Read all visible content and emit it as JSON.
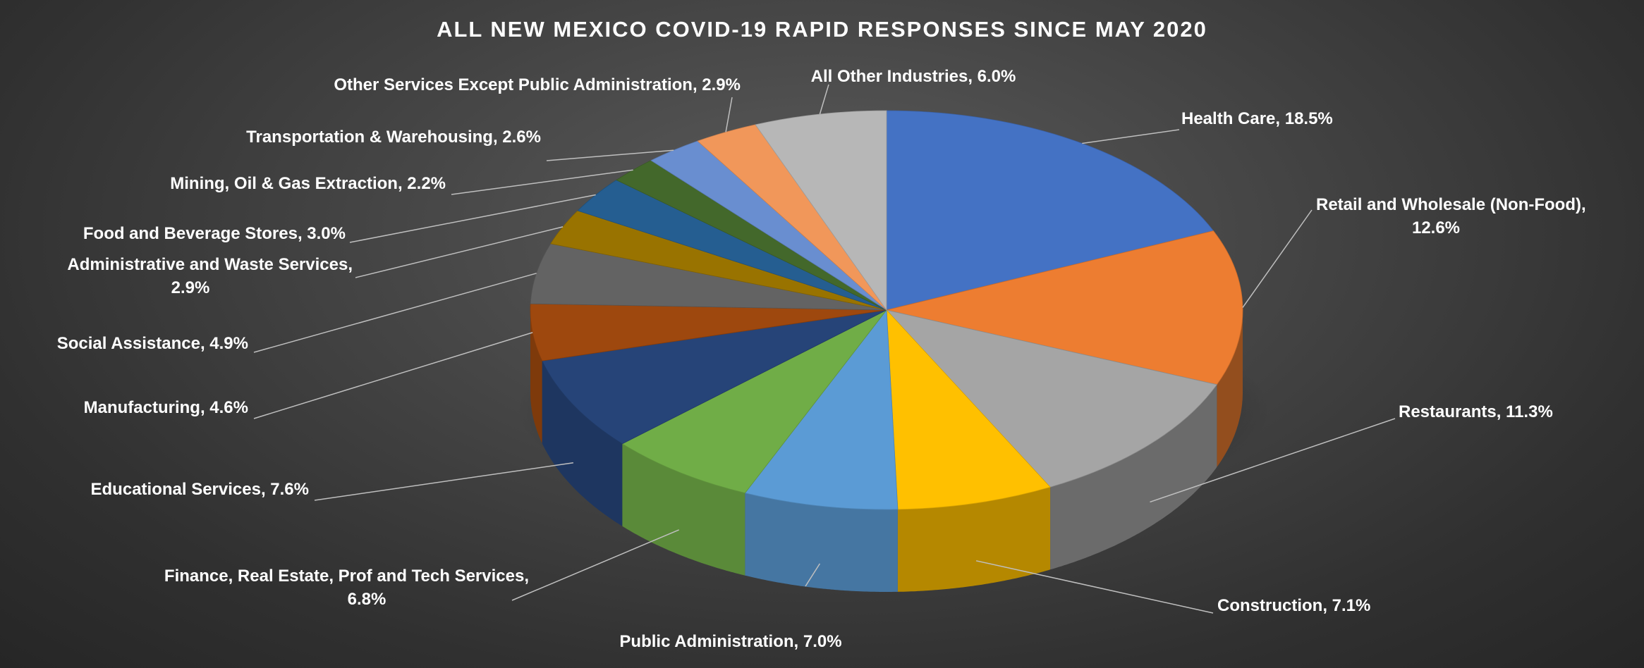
{
  "chart_data": {
    "type": "pie",
    "title": "ALL NEW MEXICO COVID-19 RAPID RESPONSES SINCE MAY 2020",
    "slices": [
      {
        "label": "Health Care",
        "value": 18.5,
        "label_text": "Health Care, 18.5%",
        "color": "#4472C4"
      },
      {
        "label": "Retail and Wholesale (Non-Food)",
        "value": 12.6,
        "label_text": "Retail and Wholesale (Non-Food), 12.6%",
        "color": "#ED7D31"
      },
      {
        "label": "Restaurants",
        "value": 11.3,
        "label_text": "Restaurants, 11.3%",
        "color": "#A5A5A5"
      },
      {
        "label": "Construction",
        "value": 7.1,
        "label_text": "Construction, 7.1%",
        "color": "#FFC000"
      },
      {
        "label": "Public Administration",
        "value": 7.0,
        "label_text": "Public Administration, 7.0%",
        "color": "#5B9BD5"
      },
      {
        "label": "Finance, Real Estate, Prof and Tech Services",
        "value": 6.8,
        "label_text": "Finance, Real Estate, Prof and Tech Services, 6.8%",
        "color": "#70AD47"
      },
      {
        "label": "Educational Services",
        "value": 7.6,
        "label_text": "Educational Services, 7.6%",
        "color": "#264478"
      },
      {
        "label": "Manufacturing",
        "value": 4.6,
        "label_text": "Manufacturing, 4.6%",
        "color": "#9E480E"
      },
      {
        "label": "Social Assistance",
        "value": 4.9,
        "label_text": "Social Assistance, 4.9%",
        "color": "#636363"
      },
      {
        "label": "Administrative and Waste Services",
        "value": 2.9,
        "label_text": "Administrative and Waste Services, 2.9%",
        "color": "#997300"
      },
      {
        "label": "Food and Beverage Stores",
        "value": 3.0,
        "label_text": "Food and Beverage Stores, 3.0%",
        "color": "#255E91"
      },
      {
        "label": "Mining, Oil & Gas Extraction",
        "value": 2.2,
        "label_text": "Mining, Oil & Gas Extraction, 2.2%",
        "color": "#43682B"
      },
      {
        "label": "Transportation & Warehousing",
        "value": 2.6,
        "label_text": "Transportation & Warehousing, 2.6%",
        "color": "#698ED0"
      },
      {
        "label": "Other Services Except Public Administration",
        "value": 2.9,
        "label_text": "Other Services Except Public Administration, 2.9%",
        "color": "#F1975A"
      },
      {
        "label": "All Other Industries",
        "value": 6.0,
        "label_text": "All Other Industries, 6.0%",
        "color": "#B7B7B7"
      }
    ],
    "label_color": "#FFFFFF",
    "leader_line_color": "#BFBFBF",
    "background_color": "#404040"
  }
}
